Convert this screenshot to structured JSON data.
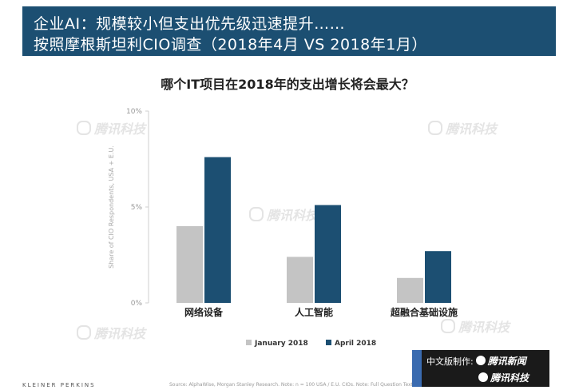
{
  "header": {
    "title_line1": "企业AI：规模较小但支出优先级迅速提升……",
    "title_line2": "按照摩根斯坦利CIO调查（2018年4月 VS 2018年1月）",
    "background": "#1c4f72"
  },
  "question": "哪个IT项目在2018年的支出增长将会最大？",
  "chart_data": {
    "type": "bar",
    "title": "哪个IT项目在2018年的支出增长将会最大？",
    "categories": [
      "网络设备",
      "人工智能",
      "超融合基础设施"
    ],
    "series": [
      {
        "name": "January 2018",
        "values": [
          4.0,
          2.4,
          1.3
        ],
        "color": "#c4c4c4"
      },
      {
        "name": "April 2018",
        "values": [
          7.6,
          5.1,
          2.7
        ],
        "color": "#1c4f72"
      }
    ],
    "ylabel": "Share of CIO Respondents, USA + E.U.",
    "xlabel": "",
    "ylim": [
      0,
      10
    ],
    "yticks": [
      0,
      5,
      10
    ],
    "ytick_labels": [
      "0%",
      "5%",
      "10%"
    ],
    "grid": false,
    "legend_position": "bottom"
  },
  "footer": {
    "brand": "KLEINER PERKINS",
    "source": "Source: AlphaWise, Morgan Stanley Research. Note: n = 100 USA / E.U. CIOs. Note: Full Question Text"
  },
  "badge": {
    "line1_prefix": "中文版制作:",
    "line1_brand": "腾讯新闻",
    "line2_brand": "腾讯科技"
  },
  "watermark": "腾讯科技"
}
